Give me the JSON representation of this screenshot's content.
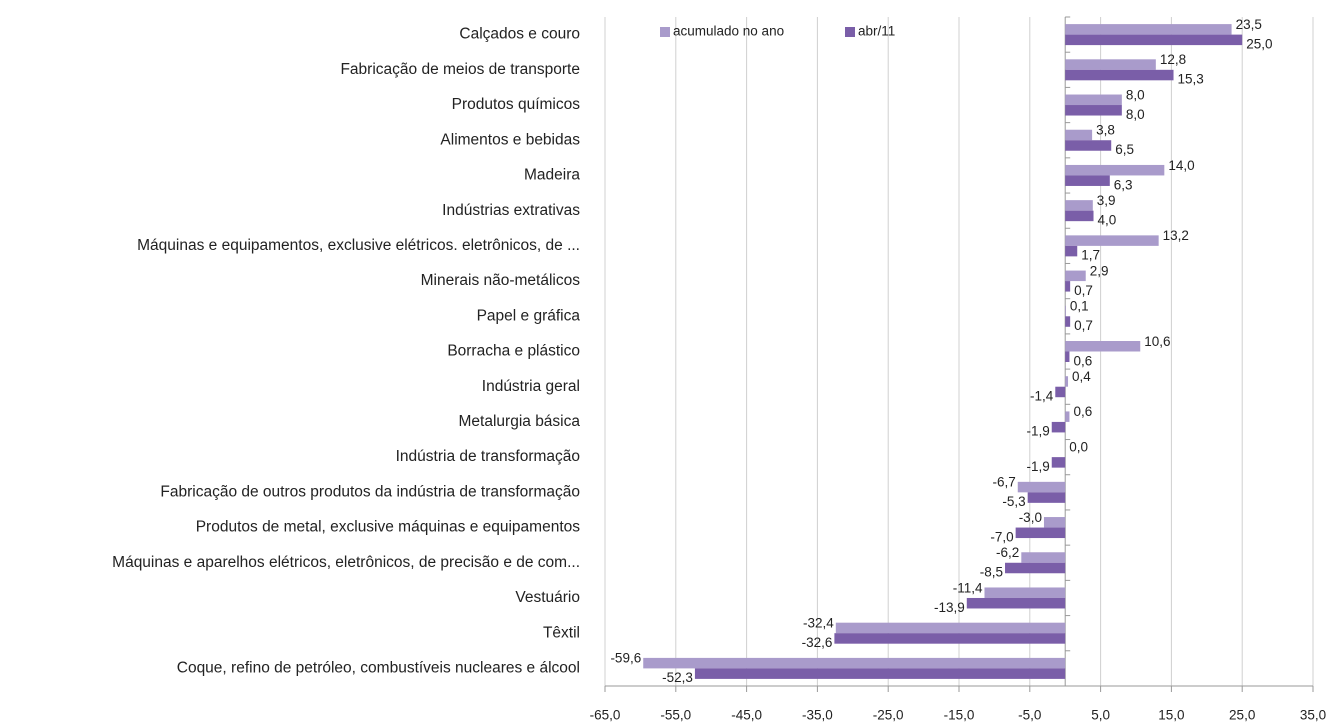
{
  "chart_data": {
    "type": "hbar",
    "categories": [
      "Calçados e couro",
      "Fabricação de meios de transporte",
      "Produtos químicos",
      "Alimentos e bebidas",
      "Madeira",
      "Indústrias extrativas",
      "Máquinas e equipamentos, exclusive elétricos. eletrônicos, de ...",
      "Minerais não-metálicos",
      "Papel e gráfica",
      "Borracha e plástico",
      "Indústria geral",
      "Metalurgia básica",
      "Indústria de transformação",
      "Fabricação de outros produtos da indústria de transformação",
      "Produtos de metal, exclusive máquinas e equipamentos",
      "Máquinas e aparelhos elétricos, eletrônicos, de precisão e de com...",
      "Vestuário",
      "Têxtil",
      "Coque, refino de petróleo, combustíveis nucleares e álcool"
    ],
    "series": [
      {
        "name": "acumulado no ano",
        "color": "#a99bcb",
        "values": [
          23.5,
          12.8,
          8.0,
          3.8,
          14.0,
          3.9,
          13.2,
          2.9,
          0.1,
          10.6,
          0.4,
          0.6,
          0.0,
          -6.7,
          -3.0,
          -6.2,
          -11.4,
          -32.4,
          -59.6
        ],
        "value_labels": [
          "23,5",
          "12,8",
          "8,0",
          "3,8",
          "14,0",
          "3,9",
          "13,2",
          "2,9",
          "0,1",
          "10,6",
          "0,4",
          "0,6",
          "0,0",
          "-6,7",
          "-3,0",
          "-6,2",
          "-11,4",
          "-32,4",
          "-59,6"
        ]
      },
      {
        "name": "abr/11",
        "color": "#7a5ea8",
        "values": [
          25.0,
          15.3,
          8.0,
          6.5,
          6.3,
          4.0,
          1.7,
          0.7,
          0.7,
          0.6,
          -1.4,
          -1.9,
          -1.9,
          -5.3,
          -7.0,
          -8.5,
          -13.9,
          -32.6,
          -52.3
        ],
        "value_labels": [
          "25,0",
          "15,3",
          "8,0",
          "6,5",
          "6,3",
          "4,0",
          "1,7",
          "0,7",
          "0,7",
          "0,6",
          "-1,4",
          "-1,9",
          "-1,9",
          "-5,3",
          "-7,0",
          "-8,5",
          "-13,9",
          "-32,6",
          "-52,3"
        ]
      }
    ],
    "xlim": [
      -65,
      35
    ],
    "xticks": [
      {
        "value": -65,
        "label": "-65,0"
      },
      {
        "value": -55,
        "label": "-55,0"
      },
      {
        "value": -45,
        "label": "-45,0"
      },
      {
        "value": -35,
        "label": "-35,0"
      },
      {
        "value": -25,
        "label": "-25,0"
      },
      {
        "value": -15,
        "label": "-15,0"
      },
      {
        "value": -5,
        "label": "-5,0"
      },
      {
        "value": 5,
        "label": "5,0"
      },
      {
        "value": 15,
        "label": "15,0"
      },
      {
        "value": 25,
        "label": "25,0"
      },
      {
        "value": 35,
        "label": "35,0"
      }
    ],
    "grid": true
  }
}
